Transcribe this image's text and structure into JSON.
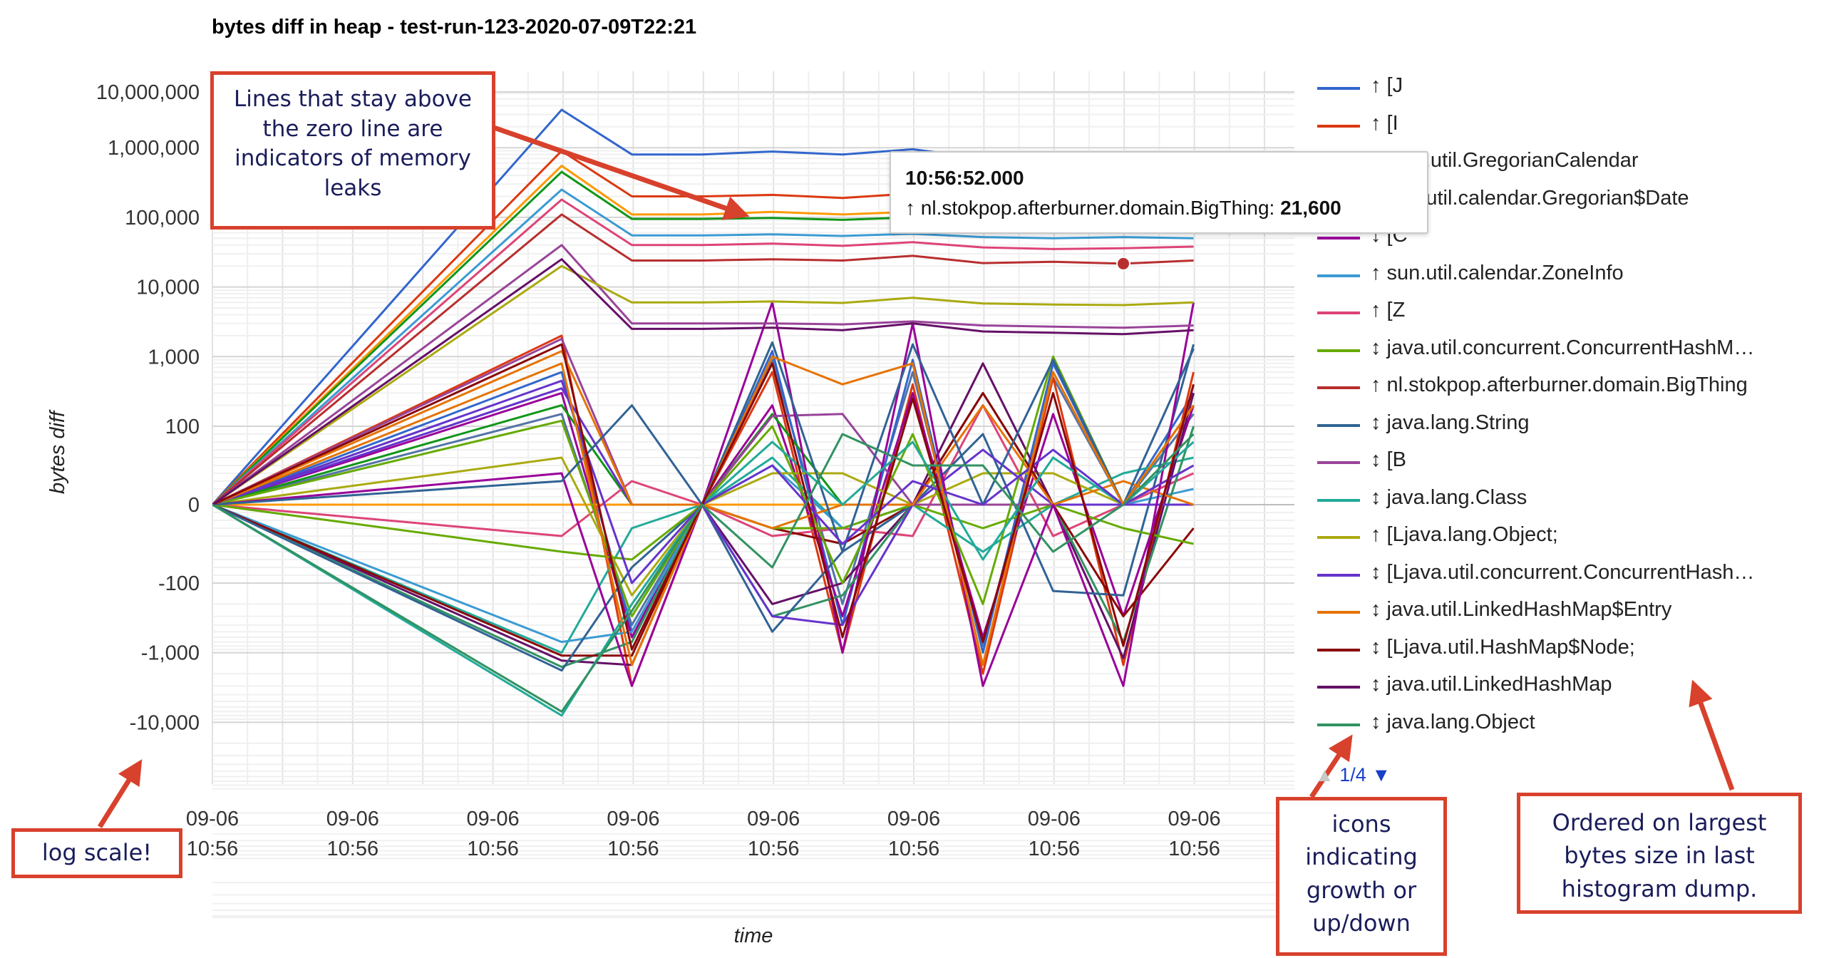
{
  "chart_data": {
    "type": "line",
    "title": "bytes diff in heap - test-run-123-2020-07-09T22:21",
    "xlabel": "time",
    "ylabel": "bytes diff",
    "y_scale": "symlog",
    "x_tick_labels": [
      [
        "09-06",
        "10:56"
      ],
      [
        "09-06",
        "10:56"
      ],
      [
        "09-06",
        "10:56"
      ],
      [
        "09-06",
        "10:56"
      ],
      [
        "09-06",
        "10:56"
      ],
      [
        "09-06",
        "10:56"
      ],
      [
        "09-06",
        "10:56"
      ],
      [
        "09-06",
        "10:56"
      ],
      [
        "09-06",
        ""
      ]
    ],
    "y_ticks": [
      {
        "value": 10000000,
        "label": "10,000,000"
      },
      {
        "value": 1000000,
        "label": "1,000,000"
      },
      {
        "value": 100000,
        "label": "100,000"
      },
      {
        "value": 10000,
        "label": "10,000"
      },
      {
        "value": 1000,
        "label": "1,000"
      },
      {
        "value": 100,
        "label": "100"
      },
      {
        "value": 0,
        "label": "0"
      },
      {
        "value": -100,
        "label": "-100"
      },
      {
        "value": -1000,
        "label": "-1,000"
      },
      {
        "value": -10000,
        "label": "-10,000"
      }
    ],
    "legend_position": "right",
    "series": [
      {
        "name": "↑ [J",
        "color": "#3366cc",
        "values": [
          0,
          3500000,
          800000,
          800000,
          880000,
          800000,
          950000,
          700000,
          550000,
          560000,
          400000
        ]
      },
      {
        "name": "↑ [I",
        "color": "#dc3912",
        "values": [
          0,
          900000,
          200000,
          200000,
          210000,
          190000,
          220000,
          180000,
          160000,
          160000,
          150000
        ]
      },
      {
        "name": "↑ java.util.GregorianCalendar",
        "color": "#ff9900",
        "values": [
          0,
          550000,
          110000,
          110000,
          120000,
          110000,
          120000,
          100000,
          100000,
          100000,
          100000
        ]
      },
      {
        "name": "↑ sun.util.calendar.Gregorian$Date",
        "color": "#109618",
        "values": [
          0,
          450000,
          95000,
          95000,
          98000,
          92000,
          100000,
          85000,
          82000,
          85000,
          80000
        ]
      },
      {
        "name": "↕ [C",
        "color": "#990099",
        "values": [
          0,
          40,
          -3000,
          0,
          6000,
          -1000,
          3000,
          -3000,
          0,
          -3000,
          6000
        ]
      },
      {
        "name": "↑ sun.util.calendar.ZoneInfo",
        "color": "#3b9bd3",
        "values": [
          0,
          250000,
          55000,
          55000,
          57000,
          54000,
          58000,
          52000,
          50000,
          52000,
          50000
        ]
      },
      {
        "name": "↑ [Z",
        "color": "#dd4477",
        "values": [
          0,
          180000,
          40000,
          40000,
          42000,
          39000,
          44000,
          37000,
          35000,
          36000,
          38000
        ]
      },
      {
        "name": "↕ java.util.concurrent.ConcurrentHashM…",
        "color": "#66aa00",
        "values": [
          0,
          120,
          -300,
          0,
          100,
          -100,
          90,
          -200,
          1000,
          0,
          200
        ]
      },
      {
        "name": "↑ nl.stokpop.afterburner.domain.BigThing",
        "color": "#b82e2e",
        "values": [
          0,
          110000,
          24000,
          24000,
          25000,
          24000,
          28000,
          22000,
          23000,
          21600,
          24000
        ]
      },
      {
        "name": "↕ java.lang.String",
        "color": "#316395",
        "values": [
          0,
          30,
          200,
          0,
          1600,
          -60,
          1500,
          0,
          900,
          0,
          1300
        ]
      },
      {
        "name": "↕ [B",
        "color": "#994499",
        "values": [
          0,
          40000,
          3000,
          3000,
          3000,
          2900,
          3200,
          2800,
          2700,
          2600,
          2800
        ]
      },
      {
        "name": "↕ java.lang.Class",
        "color": "#22aa99",
        "values": [
          0,
          -8000,
          -200,
          0,
          80,
          0,
          80,
          -70,
          60,
          0,
          80
        ]
      },
      {
        "name": "↑ [Ljava.lang.Object;",
        "color": "#aaaa11",
        "values": [
          0,
          20000,
          6000,
          6000,
          6200,
          5900,
          7000,
          5800,
          5600,
          5500,
          6000
        ]
      },
      {
        "name": "↕ [Ljava.util.concurrent.ConcurrentHash…",
        "color": "#6633cc",
        "values": [
          0,
          450,
          -100,
          0,
          50,
          -50,
          30,
          0,
          70,
          0,
          50
        ]
      },
      {
        "name": "↕ java.util.LinkedHashMap$Entry",
        "color": "#e67300",
        "values": [
          0,
          800,
          -1500,
          0,
          1000,
          400,
          800,
          -1500,
          600,
          0,
          200
        ]
      },
      {
        "name": "↕ [Ljava.util.HashMap$Node;",
        "color": "#8b0707",
        "values": [
          0,
          1500,
          -900,
          0,
          800,
          -600,
          250,
          -700,
          300,
          -800,
          400
        ]
      },
      {
        "name": "↕ java.util.LinkedHashMap",
        "color": "#651067",
        "values": [
          0,
          25000,
          2500,
          2500,
          2600,
          2400,
          3000,
          2300,
          2200,
          2100,
          2400
        ]
      },
      {
        "name": "↕ java.lang.Object",
        "color": "#329262",
        "values": [
          0,
          -7000,
          -250,
          0,
          -80,
          90,
          50,
          50,
          -60,
          0,
          90
        ]
      }
    ]
  },
  "extra_lines": [
    {
      "color": "#5574a6",
      "values": [
        0,
        150,
        -400,
        0,
        900,
        -200,
        600,
        -800,
        500,
        0,
        150
      ]
    },
    {
      "color": "#3366cc",
      "values": [
        0,
        600,
        -500,
        0,
        1200,
        -400,
        900,
        -1000,
        800,
        0,
        300
      ]
    },
    {
      "color": "#dc3912",
      "values": [
        0,
        2000,
        -3000,
        0,
        600,
        -1000,
        400,
        -2000,
        500,
        -1500,
        600
      ]
    },
    {
      "color": "#990099",
      "values": [
        0,
        300,
        -600,
        0,
        200,
        -300,
        300,
        -600,
        150,
        -300,
        200
      ]
    },
    {
      "color": "#109618",
      "values": [
        0,
        200,
        0,
        0,
        150,
        0,
        0,
        0,
        0,
        0,
        0
      ]
    },
    {
      "color": "#ff9900",
      "values": [
        0,
        0,
        0,
        0,
        0,
        0,
        0,
        0,
        0,
        0,
        0
      ]
    },
    {
      "color": "#dd4477",
      "values": [
        0,
        -40,
        30,
        0,
        -40,
        -30,
        -40,
        200,
        -40,
        0,
        40
      ]
    },
    {
      "color": "#22aa99",
      "values": [
        0,
        -1000,
        -30,
        0,
        60,
        -30,
        0,
        -60,
        0,
        40,
        60
      ]
    },
    {
      "color": "#3b9bd3",
      "values": [
        0,
        -700,
        -500,
        0,
        50,
        -30,
        0,
        0,
        0,
        0,
        20
      ]
    },
    {
      "color": "#aaaa11",
      "values": [
        0,
        60,
        -150,
        0,
        40,
        40,
        0,
        40,
        40,
        0,
        50
      ]
    },
    {
      "color": "#651067",
      "values": [
        0,
        -1300,
        -1500,
        0,
        -200,
        -100,
        0,
        800,
        0,
        -1200,
        300
      ]
    },
    {
      "color": "#329262",
      "values": [
        0,
        -1600,
        -700,
        0,
        -300,
        -150,
        0,
        300,
        0,
        -700,
        100
      ]
    },
    {
      "color": "#8b0707",
      "values": [
        0,
        -1100,
        -1100,
        0,
        -30,
        -50,
        0,
        300,
        0,
        -300,
        -30
      ]
    },
    {
      "color": "#316395",
      "values": [
        0,
        -1800,
        -80,
        0,
        -500,
        -60,
        0,
        90,
        -130,
        -150,
        1500
      ]
    },
    {
      "color": "#66aa00",
      "values": [
        0,
        -60,
        -70,
        0,
        -30,
        -30,
        0,
        -30,
        0,
        -30,
        -50
      ]
    },
    {
      "color": "#994499",
      "values": [
        0,
        1800,
        0,
        0,
        140,
        150,
        0,
        0,
        0,
        0,
        0
      ]
    },
    {
      "color": "#6633cc",
      "values": [
        0,
        350,
        0,
        0,
        -300,
        -400,
        0,
        70,
        0,
        0,
        0
      ]
    },
    {
      "color": "#e67300",
      "values": [
        0,
        1200,
        0,
        0,
        -30,
        0,
        0,
        200,
        0,
        30,
        0
      ]
    }
  ],
  "legend_pager": {
    "prev_icon": "▲",
    "page": "1/4",
    "next_icon": "▼"
  },
  "tooltip": {
    "time": "10:56:52.000",
    "series": "↑ nl.stokpop.afterburner.domain.BigThing:",
    "value": "21,600",
    "point_index": 9,
    "series_index": 8
  },
  "annotations": {
    "leaks": "Lines that stay above the zero line are indicators of memory leaks",
    "log_scale": "log scale!",
    "icons": "icons indicating growth or up/down",
    "ordered": "Ordered on largest bytes size in last histogram dump."
  },
  "annotation_color": "#d8412c"
}
